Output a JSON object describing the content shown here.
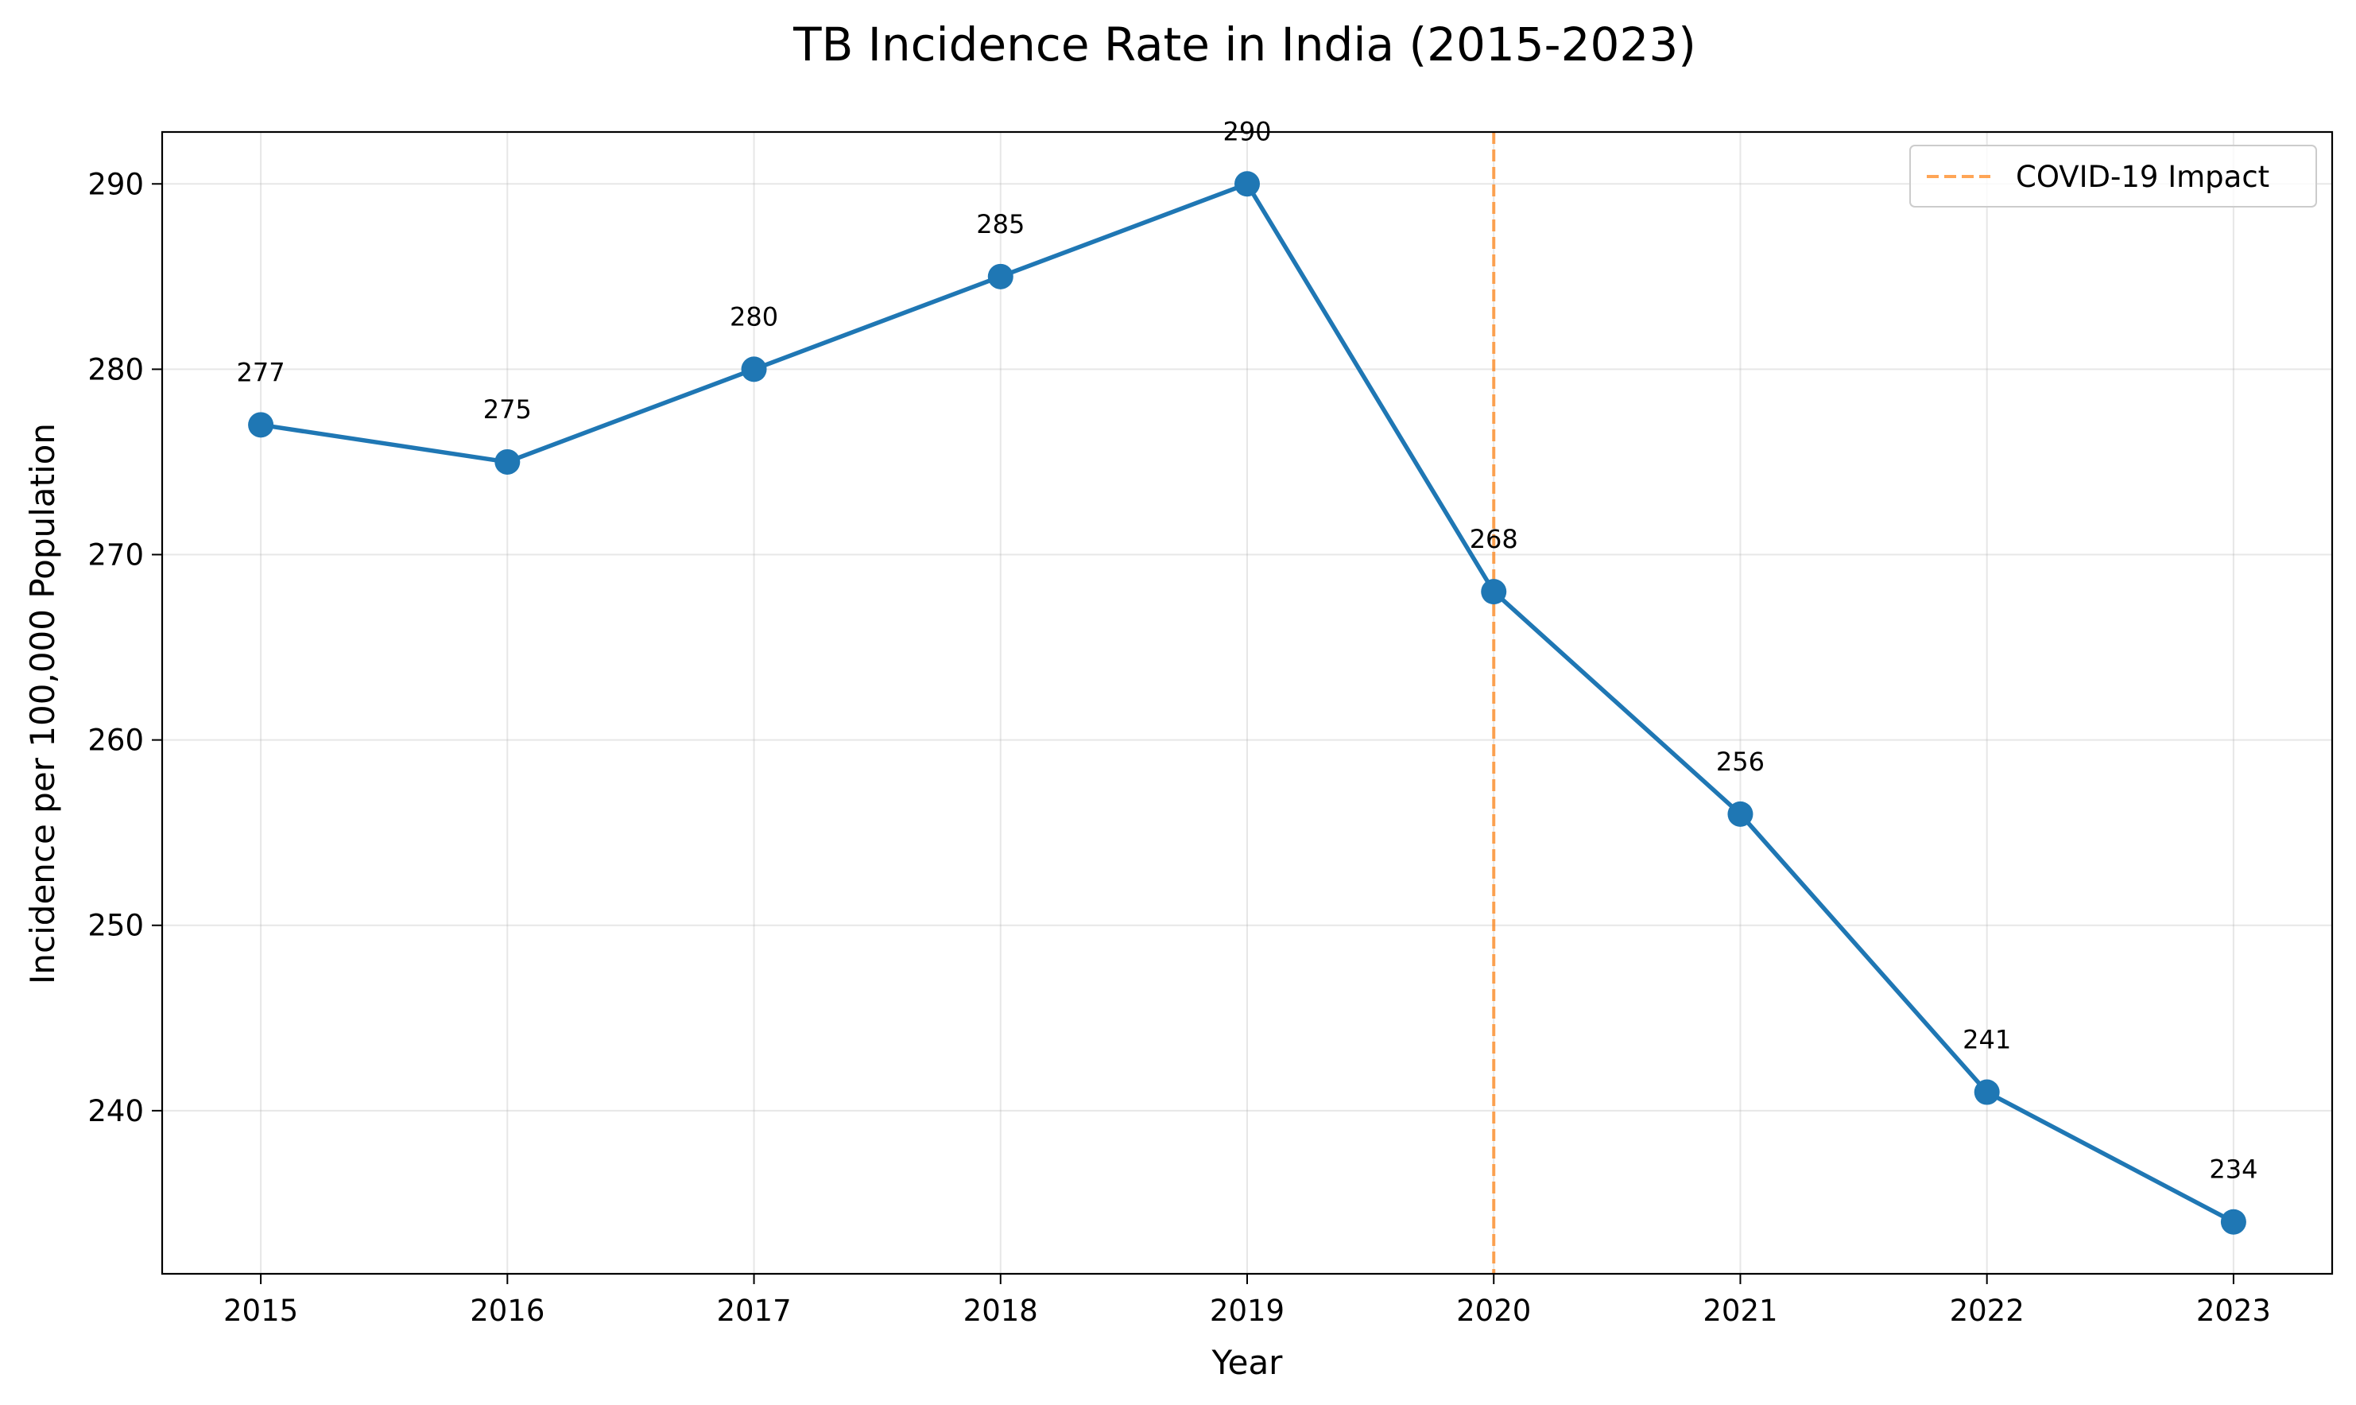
{
  "chart_data": {
    "type": "line",
    "title": "TB Incidence Rate in India (2015-2023)",
    "xlabel": "Year",
    "ylabel": "Incidence per 100,000 Population",
    "x": [
      2015,
      2016,
      2017,
      2018,
      2019,
      2020,
      2021,
      2022,
      2023
    ],
    "values": [
      277,
      275,
      280,
      285,
      290,
      268,
      256,
      241,
      234
    ],
    "xlim": [
      2014.6,
      2023.4
    ],
    "ylim": [
      231.2,
      292.8
    ],
    "yticks": [
      240,
      250,
      260,
      270,
      280,
      290
    ],
    "grid": true,
    "series_color": "#1f77b4",
    "annotation": {
      "type": "vertical-line",
      "x": 2020,
      "style": "dashed",
      "color": "#ff7f0e",
      "label": "COVID-19 Impact"
    },
    "legend": {
      "placement": "top-right",
      "entries": [
        "COVID-19 Impact"
      ]
    }
  }
}
